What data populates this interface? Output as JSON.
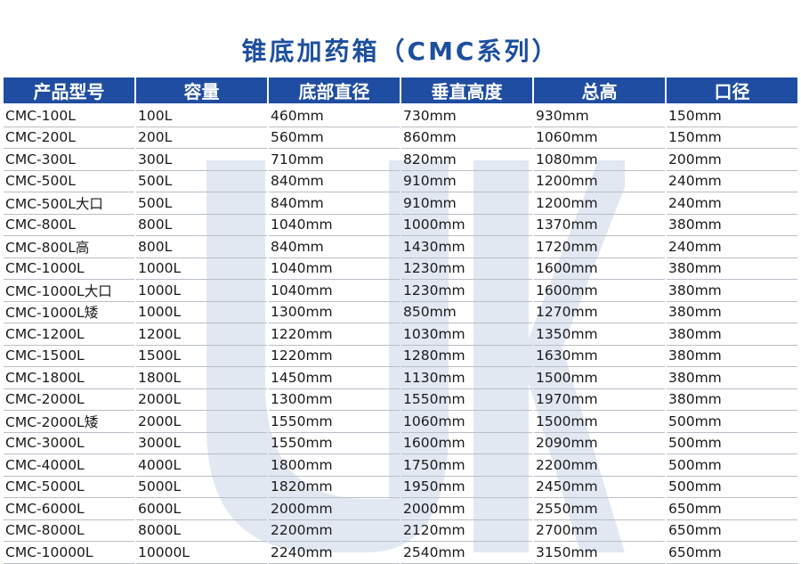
{
  "title": "锥底加药箱（CMC系列）",
  "brand": {
    "watermark_color": "#dfe6f1",
    "header_color": "#1f4da1",
    "title_color": "#1d4f9f"
  },
  "table": {
    "columns": [
      "产品型号",
      "容量",
      "底部直径",
      "垂直高度",
      "总高",
      "口径"
    ],
    "rows": [
      [
        "CMC-100L",
        "100L",
        "460mm",
        "730mm",
        "930mm",
        "150mm"
      ],
      [
        "CMC-200L",
        "200L",
        "560mm",
        "860mm",
        "1060mm",
        "150mm"
      ],
      [
        "CMC-300L",
        "300L",
        "710mm",
        "820mm",
        "1080mm",
        "200mm"
      ],
      [
        "CMC-500L",
        "500L",
        "840mm",
        "910mm",
        "1200mm",
        "240mm"
      ],
      [
        "CMC-500L大口",
        "500L",
        "840mm",
        "910mm",
        "1200mm",
        "240mm"
      ],
      [
        "CMC-800L",
        "800L",
        "1040mm",
        "1000mm",
        "1370mm",
        "380mm"
      ],
      [
        "CMC-800L高",
        "800L",
        "840mm",
        "1430mm",
        "1720mm",
        "240mm"
      ],
      [
        "CMC-1000L",
        "1000L",
        "1040mm",
        "1230mm",
        "1600mm",
        "380mm"
      ],
      [
        "CMC-1000L大口",
        "1000L",
        "1040mm",
        "1230mm",
        "1600mm",
        "380mm"
      ],
      [
        "CMC-1000L矮",
        "1000L",
        "1300mm",
        "850mm",
        "1270mm",
        "380mm"
      ],
      [
        "CMC-1200L",
        "1200L",
        "1220mm",
        "1030mm",
        "1350mm",
        "380mm"
      ],
      [
        "CMC-1500L",
        "1500L",
        "1220mm",
        "1280mm",
        "1630mm",
        "380mm"
      ],
      [
        "CMC-1800L",
        "1800L",
        "1450mm",
        "1130mm",
        "1500mm",
        "380mm"
      ],
      [
        "CMC-2000L",
        "2000L",
        "1300mm",
        "1550mm",
        "1970mm",
        "380mm"
      ],
      [
        "CMC-2000L矮",
        "2000L",
        "1550mm",
        "1060mm",
        "1500mm",
        "500mm"
      ],
      [
        "CMC-3000L",
        "3000L",
        "1550mm",
        "1600mm",
        "2090mm",
        "500mm"
      ],
      [
        "CMC-4000L",
        "4000L",
        "1800mm",
        "1750mm",
        "2200mm",
        "500mm"
      ],
      [
        "CMC-5000L",
        "5000L",
        "1820mm",
        "1950mm",
        "2450mm",
        "500mm"
      ],
      [
        "CMC-6000L",
        "6000L",
        "2000mm",
        "2000mm",
        "2550mm",
        "650mm"
      ],
      [
        "CMC-8000L",
        "8000L",
        "2200mm",
        "2120mm",
        "2700mm",
        "650mm"
      ],
      [
        "CMC-10000L",
        "10000L",
        "2240mm",
        "2540mm",
        "3150mm",
        "650mm"
      ]
    ]
  }
}
